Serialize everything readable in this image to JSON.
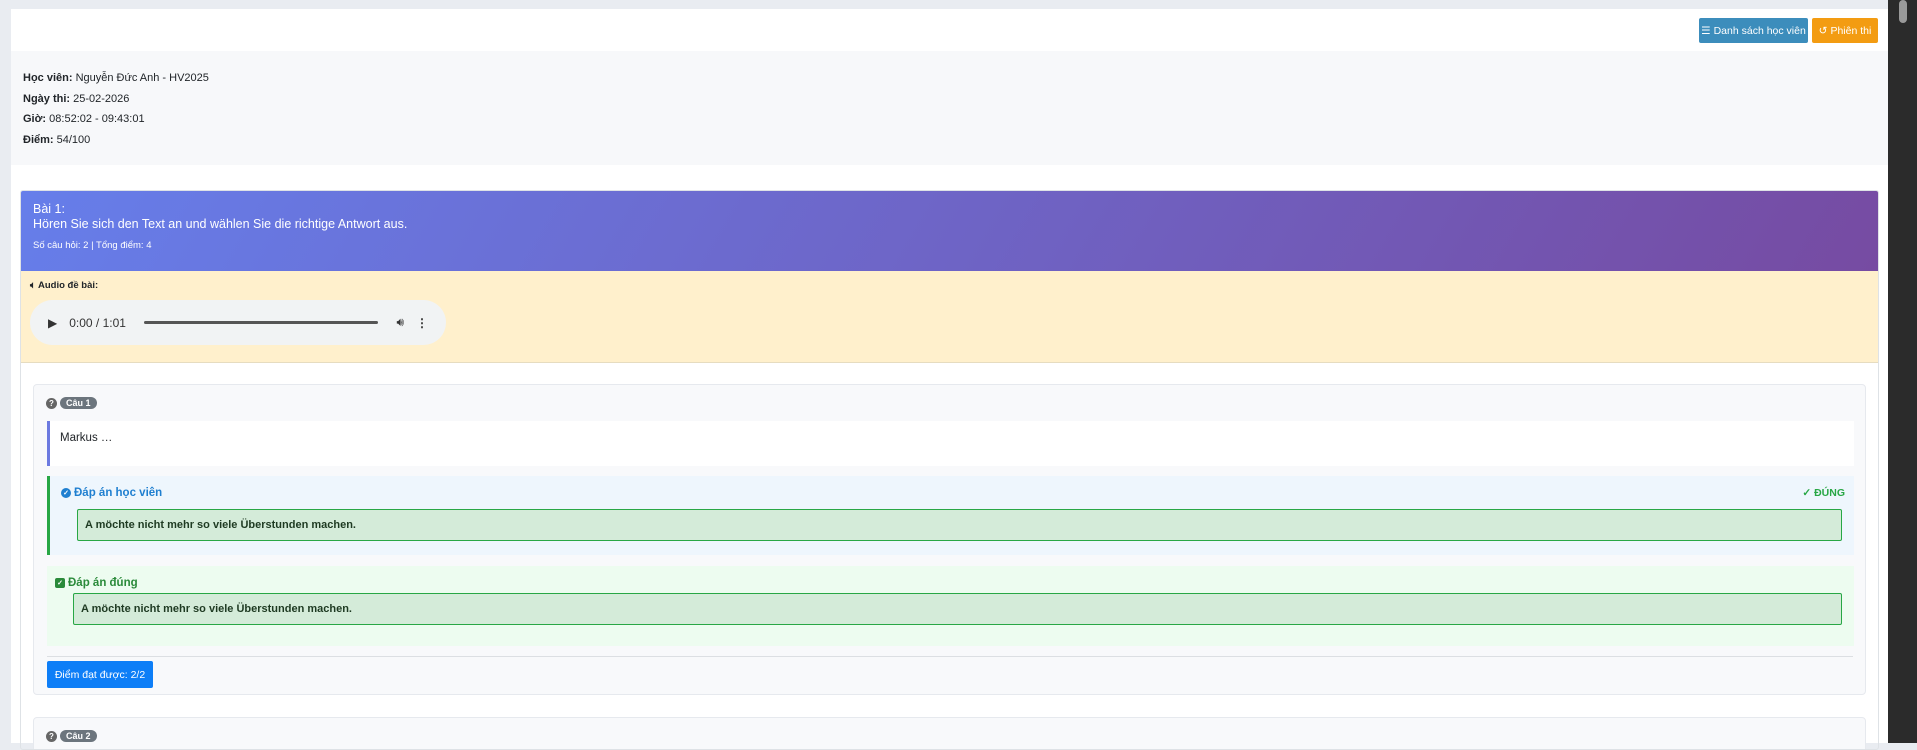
{
  "toolbar": {
    "student_list_label": "Danh sách học viên",
    "session_label": "Phiên thi",
    "colors": {
      "student_list": "#3c8dbc",
      "session": "#f39c12"
    }
  },
  "info": {
    "student_label": "Học viên:",
    "student_value": "Nguyễn Đức Anh - HV2025",
    "date_label": "Ngày thi:",
    "date_value": "25-02-2026",
    "time_label": "Giờ:",
    "time_value": "08:52:02 - 09:43:01",
    "score_label": "Điểm:",
    "score_value": "54/100"
  },
  "section": {
    "title": "Bài 1:",
    "instruction": "Hören Sie sich den Text an und wählen Sie die richtige Antwort aus.",
    "meta": "Số câu hỏi: 2 | Tổng điểm: 4",
    "audio_label": "Audio đề bài:",
    "audio": {
      "time": "0:00 / 1:01",
      "progress": 0
    }
  },
  "questions": [
    {
      "badge": "Câu 1",
      "text": "Markus …",
      "student_answer_label": "Đáp án học viên",
      "verdict": "✓ ĐÚNG",
      "student_answer": "A möchte nicht mehr so viele Überstunden machen.",
      "correct_label": "Đáp án đúng",
      "correct_answer": "A möchte nicht mehr so viele Überstunden machen.",
      "score": "Điểm đạt được: 2/2"
    },
    {
      "badge": "Câu 2"
    }
  ]
}
